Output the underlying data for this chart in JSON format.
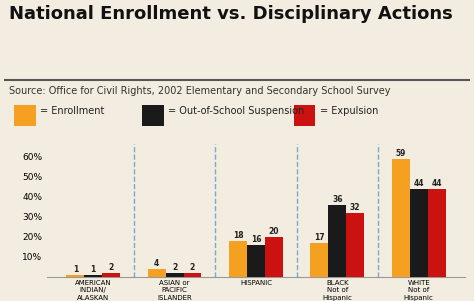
{
  "title": "National Enrollment vs. Disciplinary Actions",
  "source": "Source: Office for Civil Rights, 2002 Elementary and Secondary School Survey",
  "legend_labels": [
    "= Enrollment",
    "= Out-of-School Suspension",
    "= Expulsion"
  ],
  "legend_colors": [
    "#F5A020",
    "#1A1A1A",
    "#CC1111"
  ],
  "categories": [
    "AMERICAN\nINDIAN/\nALASKAN\nNATIVE",
    "ASIAN or\nPACIFIC\nISLANDER",
    "HISPANIC",
    "BLACK\nNot of\nHispanic\nOrigin",
    "WHITE\nNot of\nHispanic\nOrigin"
  ],
  "enrollment": [
    1,
    4,
    18,
    17,
    59
  ],
  "suspension": [
    1,
    2,
    16,
    36,
    44
  ],
  "expulsion": [
    2,
    2,
    20,
    32,
    44
  ],
  "bar_colors": [
    "#F5A020",
    "#1A1A1A",
    "#CC1111"
  ],
  "ylim": [
    0,
    66
  ],
  "yticks": [
    0,
    10,
    20,
    30,
    40,
    50,
    60
  ],
  "ytick_labels": [
    "",
    "10%",
    "20%",
    "30%",
    "40%",
    "50%",
    "60%"
  ],
  "background_color": "#F2EDE0",
  "title_fontsize": 13,
  "source_fontsize": 7,
  "legend_fontsize": 7,
  "bar_label_fontsize": 5.5,
  "xtick_fontsize": 5,
  "ytick_fontsize": 6.5,
  "bar_width": 0.22,
  "dashed_color": "#7AAAD0",
  "separator_color": "#555555",
  "spine_color": "#999999"
}
